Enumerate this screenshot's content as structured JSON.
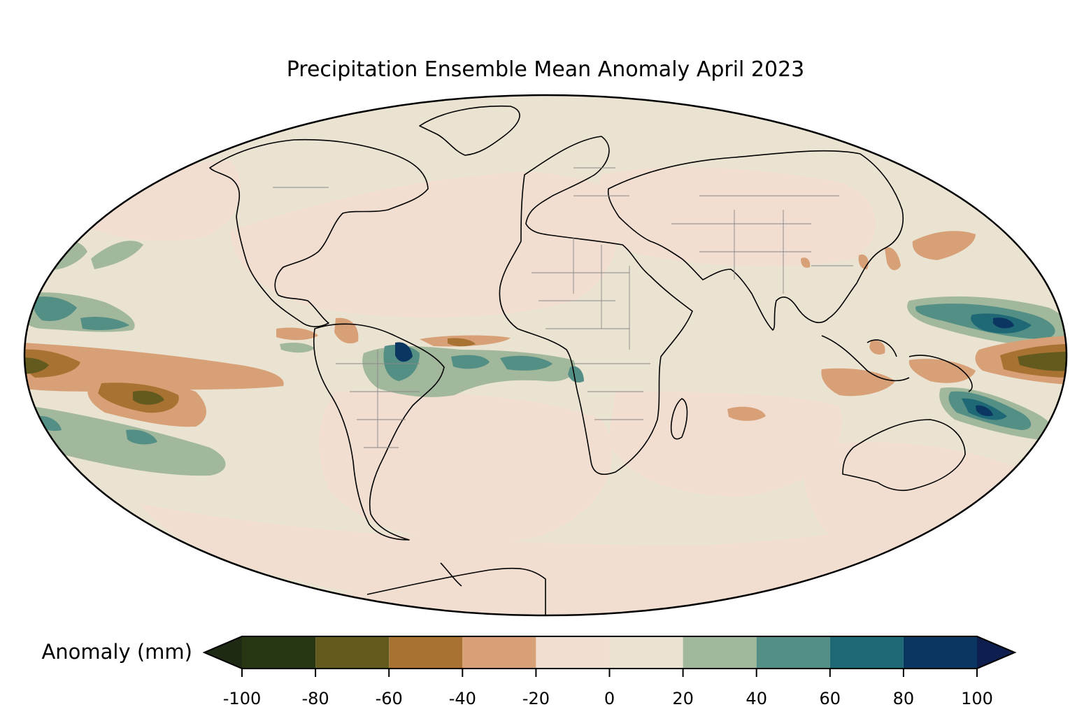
{
  "map": {
    "title": "Precipitation Ensemble Mean Anomaly April 2023",
    "projection": "mollweide",
    "background_color": "#EAE3D2"
  },
  "colorbar": {
    "label": "Anomaly (mm)",
    "ticks": [
      "-100",
      "-80",
      "-60",
      "-40",
      "-20",
      "0",
      "20",
      "40",
      "60",
      "80",
      "100"
    ],
    "under_color": "#1E2A14",
    "over_color": "#0E1E4E",
    "bins": [
      {
        "from": -100,
        "to": -80,
        "color": "#273612"
      },
      {
        "from": -80,
        "to": -60,
        "color": "#625A1E"
      },
      {
        "from": -60,
        "to": -40,
        "color": "#A87233"
      },
      {
        "from": -40,
        "to": -20,
        "color": "#D8A076"
      },
      {
        "from": -20,
        "to": 0,
        "color": "#F2DDD1"
      },
      {
        "from": 0,
        "to": 20,
        "color": "#EAE3D2"
      },
      {
        "from": 20,
        "to": 40,
        "color": "#A2B89C"
      },
      {
        "from": 40,
        "to": 60,
        "color": "#548F85"
      },
      {
        "from": 60,
        "to": 80,
        "color": "#1F6977"
      },
      {
        "from": 80,
        "to": 100,
        "color": "#0C3662"
      }
    ]
  }
}
